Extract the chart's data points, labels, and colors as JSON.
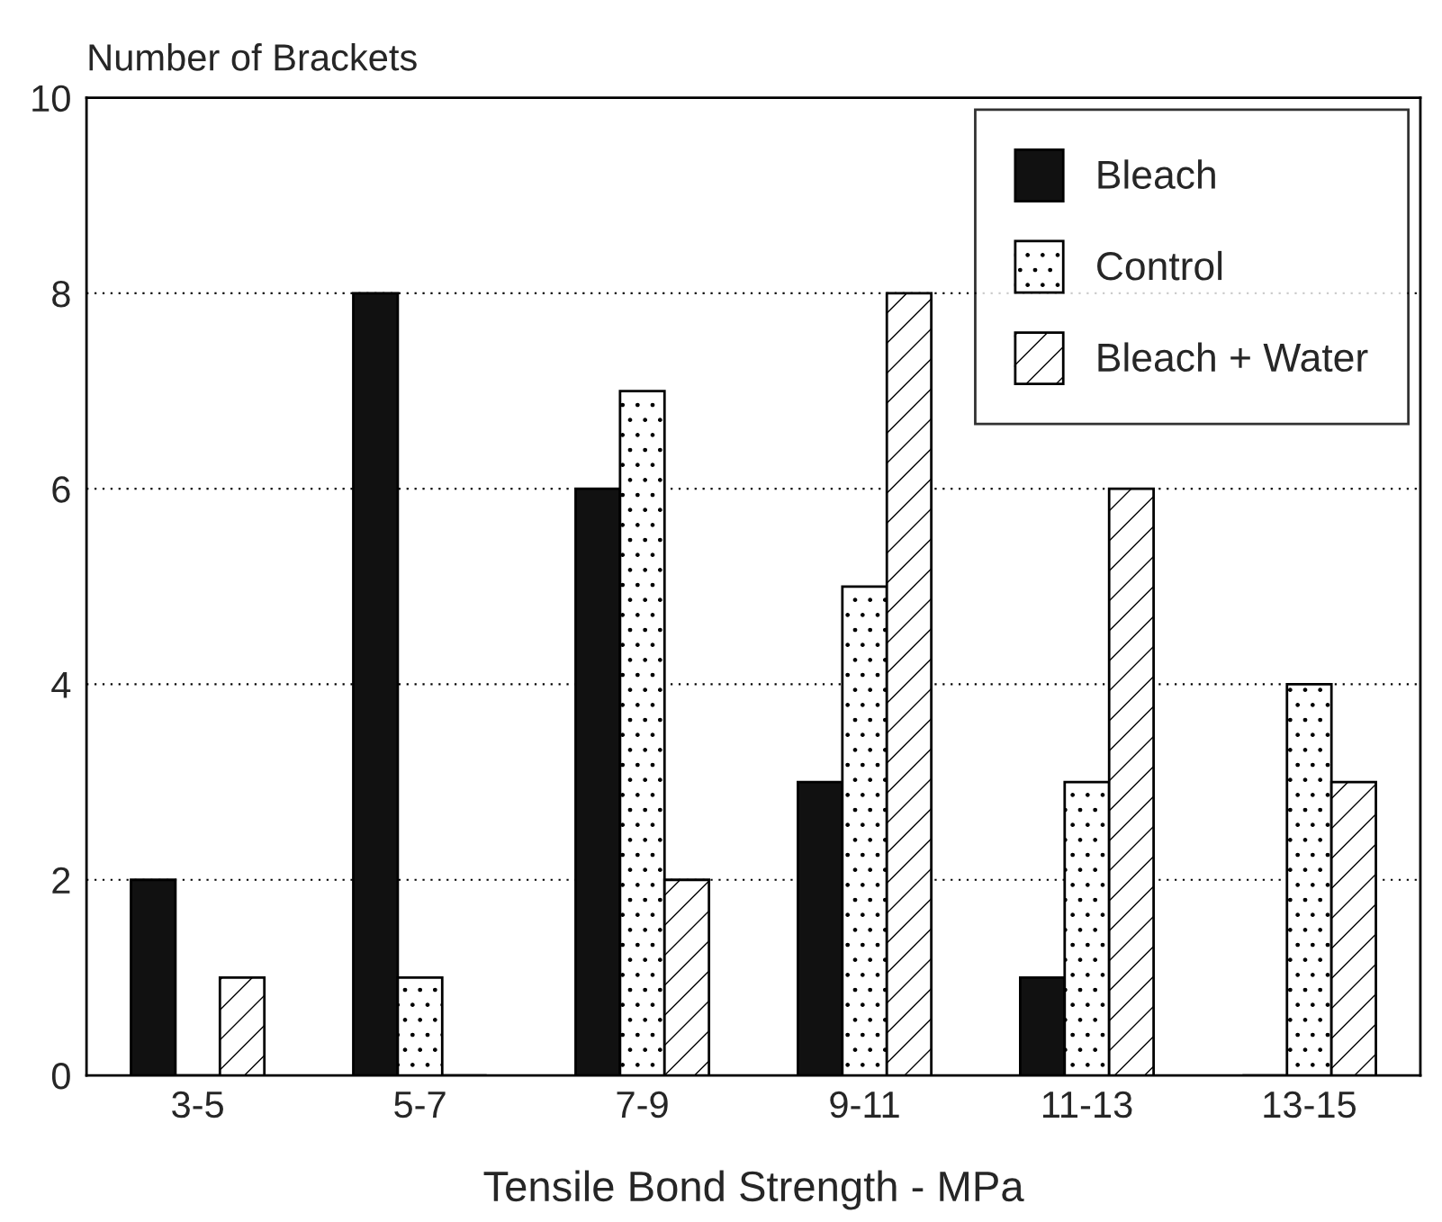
{
  "chart_data": {
    "type": "bar",
    "xlabel": "Tensile Bond Strength - MPa",
    "ylabel": "Number of Brackets",
    "categories": [
      "3-5",
      "5-7",
      "7-9",
      "9-11",
      "11-13",
      "13-15"
    ],
    "series": [
      {
        "name": "Bleach",
        "color": "#111111",
        "values": [
          2,
          8,
          6,
          3,
          1,
          0
        ]
      },
      {
        "name": "Control",
        "color": "#ffffff",
        "values": [
          0,
          1,
          7,
          5,
          3,
          4
        ]
      },
      {
        "name": "Bleach + Water",
        "color": "#ffffff",
        "values": [
          1,
          0,
          2,
          8,
          6,
          3
        ]
      }
    ],
    "ylim": [
      0,
      10
    ],
    "yticks": [
      0,
      2,
      4,
      6,
      8,
      10
    ],
    "grid": "y",
    "legend": "top right"
  }
}
